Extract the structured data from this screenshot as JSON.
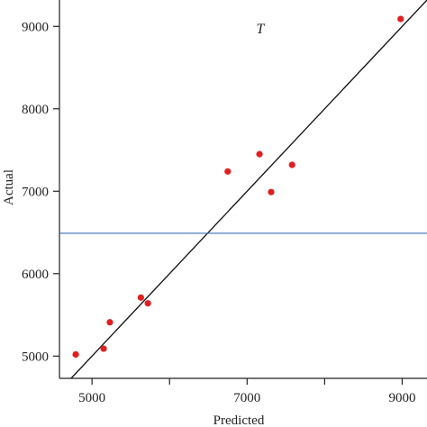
{
  "chart_data": {
    "type": "scatter",
    "title": "T",
    "xlabel": "Predicted",
    "ylabel": "Actual",
    "xlim": [
      4580,
      9320
    ],
    "ylim": [
      4730,
      9320
    ],
    "x_ticks": [
      5000,
      6000,
      7000,
      8000,
      9000
    ],
    "x_tick_labels": [
      "5000",
      "",
      "7000",
      "",
      "9000"
    ],
    "y_ticks": [
      5000,
      6000,
      7000,
      8000,
      9000
    ],
    "y_tick_labels": [
      "5000",
      "6000",
      "7000",
      "8000",
      "9000"
    ],
    "series": [
      {
        "x": [
          4790,
          5150,
          5230,
          5630,
          5720,
          6750,
          7160,
          7310,
          7580,
          8980
        ],
        "y": [
          5020,
          5090,
          5410,
          5710,
          5640,
          7240,
          7450,
          6990,
          7320,
          9090
        ],
        "color": "#e02020"
      }
    ],
    "reference_lines": [
      {
        "kind": "identity",
        "color": "#111111"
      },
      {
        "kind": "horizontal",
        "y": 6490,
        "color": "#3a6fb0"
      }
    ],
    "grid": false
  }
}
